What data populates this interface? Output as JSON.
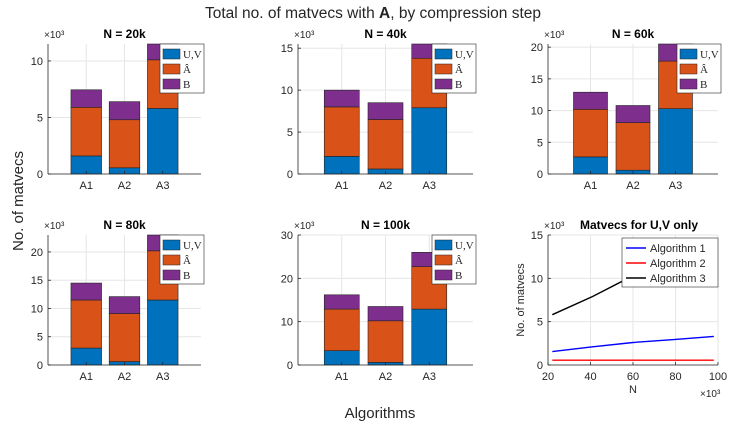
{
  "figure": {
    "title_prefix": "Total no. of matvecs with ",
    "title_bold": "A",
    "title_suffix": ", by compression step",
    "ylabel": "No. of matvecs",
    "xlabel": "Algorithms"
  },
  "colors": {
    "uv": "#0072BD",
    "ahat": "#D95319",
    "b": "#7E2F8E",
    "grid": "#e6e6e6"
  },
  "chart_data": [
    {
      "type": "bar",
      "stacked": true,
      "title": "N = 20k",
      "exponent": "×10³",
      "categories": [
        "A1",
        "A2",
        "A3"
      ],
      "ylim": [
        0,
        11.5
      ],
      "yticks": [
        0,
        5,
        10
      ],
      "grid": true,
      "legend_position": "top-right",
      "series": [
        {
          "name": "U,V",
          "values": [
            1.6,
            0.55,
            5.8
          ]
        },
        {
          "name": "Â",
          "values": [
            4.3,
            4.25,
            4.3
          ]
        },
        {
          "name": "B",
          "values": [
            1.55,
            1.6,
            1.6
          ]
        }
      ]
    },
    {
      "type": "bar",
      "stacked": true,
      "title": "N = 40k",
      "exponent": "×10³",
      "categories": [
        "A1",
        "A2",
        "A3"
      ],
      "ylim": [
        0,
        15.5
      ],
      "yticks": [
        0,
        5,
        10,
        15
      ],
      "grid": true,
      "legend_position": "top-right",
      "series": [
        {
          "name": "U,V",
          "values": [
            2.1,
            0.6,
            7.9
          ]
        },
        {
          "name": "Â",
          "values": [
            5.9,
            5.9,
            5.9
          ]
        },
        {
          "name": "B",
          "values": [
            2.0,
            2.0,
            2.0
          ]
        }
      ]
    },
    {
      "type": "bar",
      "stacked": true,
      "title": "N = 60k",
      "exponent": "×10³",
      "categories": [
        "A1",
        "A2",
        "A3"
      ],
      "ylim": [
        0,
        20.5
      ],
      "yticks": [
        0,
        5,
        10,
        15,
        20
      ],
      "grid": true,
      "legend_position": "top-right",
      "series": [
        {
          "name": "U,V",
          "values": [
            2.7,
            0.6,
            10.3
          ]
        },
        {
          "name": "Â",
          "values": [
            7.5,
            7.5,
            7.5
          ]
        },
        {
          "name": "B",
          "values": [
            2.7,
            2.7,
            2.7
          ]
        }
      ]
    },
    {
      "type": "bar",
      "stacked": true,
      "title": "N = 80k",
      "exponent": "×10³",
      "categories": [
        "A1",
        "A2",
        "A3"
      ],
      "ylim": [
        0,
        23
      ],
      "yticks": [
        0,
        5,
        10,
        15,
        20
      ],
      "grid": true,
      "legend_position": "top-right",
      "series": [
        {
          "name": "U,V",
          "values": [
            3.0,
            0.6,
            11.5
          ]
        },
        {
          "name": "Â",
          "values": [
            8.5,
            8.5,
            8.7
          ]
        },
        {
          "name": "B",
          "values": [
            3.0,
            3.0,
            3.0
          ]
        }
      ]
    },
    {
      "type": "bar",
      "stacked": true,
      "title": "N = 100k",
      "exponent": "×10³",
      "categories": [
        "A1",
        "A2",
        "A3"
      ],
      "ylim": [
        0,
        30
      ],
      "yticks": [
        0,
        10,
        20,
        30
      ],
      "grid": true,
      "legend_position": "top-right",
      "series": [
        {
          "name": "U,V",
          "values": [
            3.3,
            0.6,
            12.9
          ]
        },
        {
          "name": "Â",
          "values": [
            9.6,
            9.6,
            9.8
          ]
        },
        {
          "name": "B",
          "values": [
            3.3,
            3.3,
            3.3
          ]
        }
      ]
    },
    {
      "type": "line",
      "title": "Matvecs for U,V only",
      "xlabel": "N",
      "ylabel": "No. of matvecs",
      "x_exponent": "×10³",
      "y_exponent": "×10³",
      "xlim": [
        20,
        100
      ],
      "ylim": [
        0,
        15
      ],
      "xticks": [
        20,
        40,
        60,
        80,
        100
      ],
      "yticks": [
        0,
        5,
        10,
        15
      ],
      "grid": true,
      "legend_position": "top-right",
      "series": [
        {
          "name": "Algorithm 1",
          "color": "#0000ff",
          "x": [
            22,
            41,
            60,
            80,
            98
          ],
          "y": [
            1.55,
            2.1,
            2.6,
            2.95,
            3.3
          ]
        },
        {
          "name": "Algorithm 2",
          "color": "#ff0000",
          "x": [
            22,
            41,
            60,
            80,
            98
          ],
          "y": [
            0.55,
            0.55,
            0.55,
            0.55,
            0.55
          ]
        },
        {
          "name": "Algorithm 3",
          "color": "#000000",
          "x": [
            22,
            41,
            60,
            80,
            98
          ],
          "y": [
            5.8,
            7.9,
            10.3,
            11.5,
            12.9
          ]
        }
      ]
    }
  ]
}
